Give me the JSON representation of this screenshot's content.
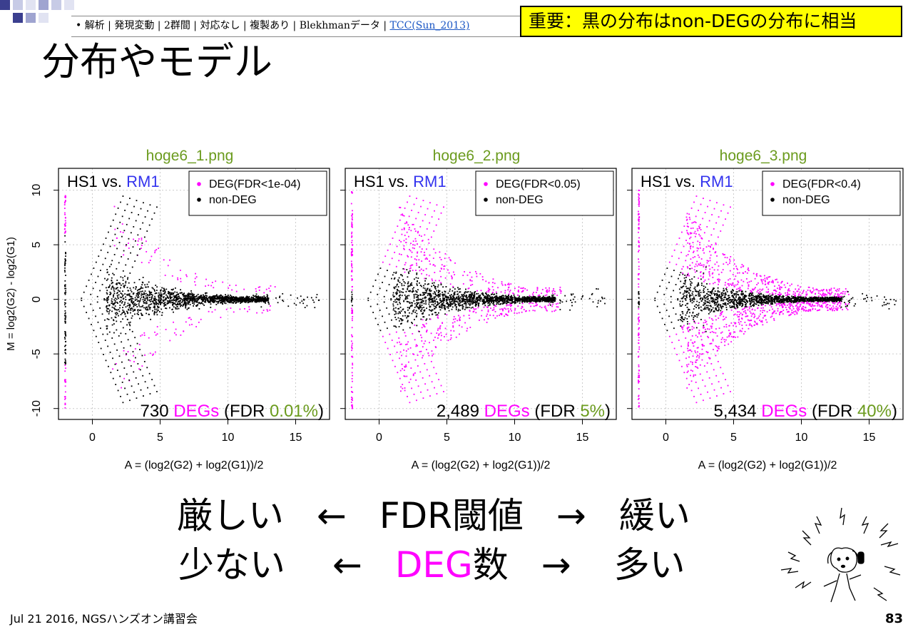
{
  "header": {
    "breadcrumb_text": "• 解析 | 発現変動 | 2群間 | 対応なし | 複製あり | Blekhmanデータ | ",
    "breadcrumb_link": "TCC(Sun_2013)"
  },
  "notice": {
    "text": "重要：黒の分布はnon-DEGの分布に相当"
  },
  "title": "分布やモデル",
  "chart_data": [
    {
      "type": "scatter",
      "title": "hoge6_1.png",
      "ylabel": "M = log2(G2) - log2(G1)",
      "xlabel": "A = (log2(G2) + log2(G1))/2",
      "xlim": [
        -2.5,
        17.5
      ],
      "ylim": [
        -11,
        12
      ],
      "x_ticks": [
        "0",
        "5",
        "10",
        "15"
      ],
      "y_ticks": [
        "10",
        "5",
        "0",
        "-5",
        "-10"
      ],
      "grid": true,
      "panel_label": {
        "group1": "HS1",
        "vs": "vs.",
        "group2": "RM1"
      },
      "legend": [
        {
          "label": "DEG(FDR<1e-04)",
          "color": "#ff00ff"
        },
        {
          "label": "non-DEG",
          "color": "#000000"
        }
      ],
      "legend_position": "top-right",
      "annotation": {
        "count": "730",
        "deg": "DEGs",
        "fdr_prefix": "(FDR",
        "fdr_value": "0.01%",
        "fdr_suffix": ")"
      },
      "fdr_threshold": 0.0001,
      "deg_count": 730
    },
    {
      "type": "scatter",
      "title": "hoge6_2.png",
      "xlabel": "A = (log2(G2) + log2(G1))/2",
      "xlim": [
        -2.5,
        17.5
      ],
      "ylim": [
        -11,
        12
      ],
      "x_ticks": [
        "0",
        "5",
        "10",
        "15"
      ],
      "grid": true,
      "panel_label": {
        "group1": "HS1",
        "vs": "vs.",
        "group2": "RM1"
      },
      "legend": [
        {
          "label": "DEG(FDR<0.05)",
          "color": "#ff00ff"
        },
        {
          "label": "non-DEG",
          "color": "#000000"
        }
      ],
      "legend_position": "top-right",
      "annotation": {
        "count": "2,489",
        "deg": "DEGs",
        "fdr_prefix": "(FDR",
        "fdr_value": "5%",
        "fdr_suffix": ")"
      },
      "fdr_threshold": 0.05,
      "deg_count": 2489
    },
    {
      "type": "scatter",
      "title": "hoge6_3.png",
      "xlabel": "A = (log2(G2) + log2(G1))/2",
      "xlim": [
        -2.5,
        17.5
      ],
      "ylim": [
        -11,
        12
      ],
      "x_ticks": [
        "0",
        "5",
        "10",
        "15"
      ],
      "grid": true,
      "panel_label": {
        "group1": "HS1",
        "vs": "vs.",
        "group2": "RM1"
      },
      "legend": [
        {
          "label": "DEG(FDR<0.4)",
          "color": "#ff00ff"
        },
        {
          "label": "non-DEG",
          "color": "#000000"
        }
      ],
      "legend_position": "top-right",
      "annotation": {
        "count": "5,434",
        "deg": "DEGs",
        "fdr_prefix": "(FDR",
        "fdr_value": "40%",
        "fdr_suffix": ")"
      },
      "fdr_threshold": 0.4,
      "deg_count": 5434
    }
  ],
  "colors": {
    "deg": "#ff00ff",
    "nondeg": "#000000",
    "title_green": "#6b9b1e",
    "group2_blue": "#3333ee",
    "notice_bg": "#ffff00"
  },
  "bottom": {
    "row1": {
      "left": "厳しい",
      "arrow_left": "←",
      "center": "FDR閾値",
      "arrow_right": "→",
      "right": "緩い"
    },
    "row2": {
      "left": "少ない",
      "arrow_left": "←",
      "center_highlight": "DEG",
      "center_rest": "数",
      "arrow_right": "→",
      "right": "多い"
    }
  },
  "footer": {
    "text": "Jul 21 2016, NGSハンズオン講習会",
    "page": "83"
  }
}
